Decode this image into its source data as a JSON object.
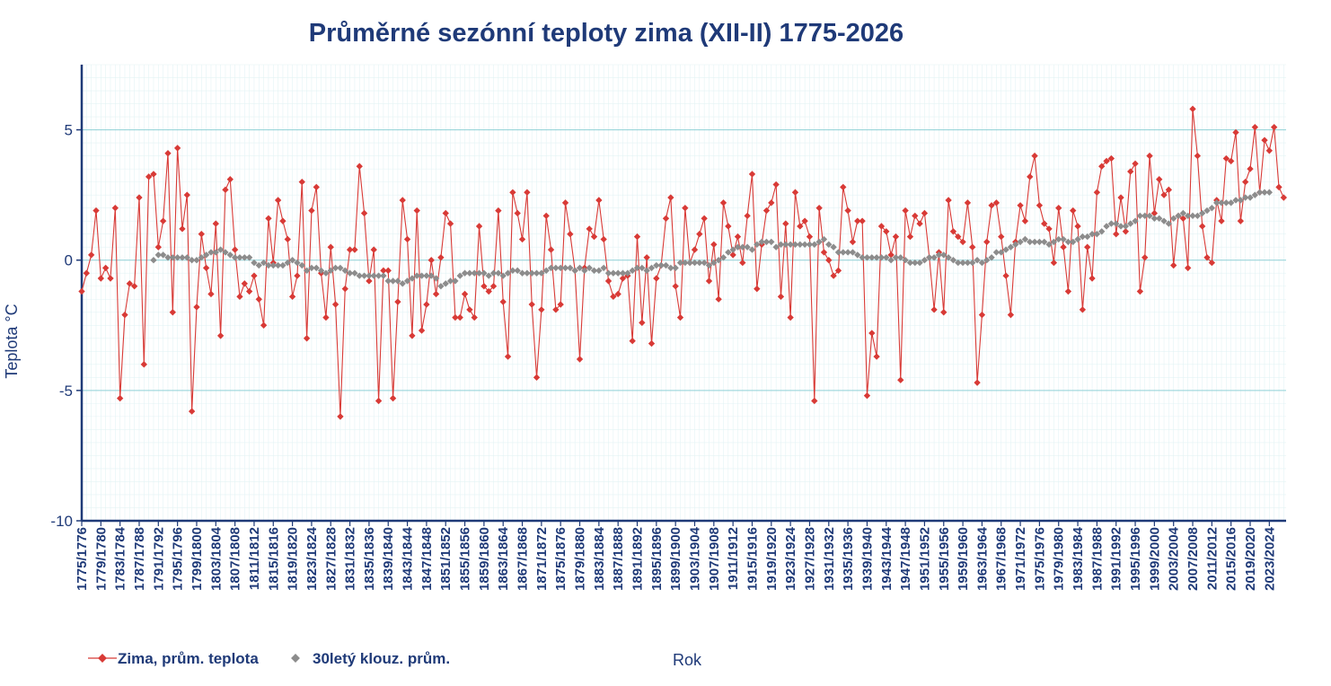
{
  "colors": {
    "title": "#1f3a78",
    "axis": "#1f3a78",
    "major_grid": "#8fd0d6",
    "minor_grid": "#e3f3f5",
    "series_main": "#d83a36",
    "series_avg": "#8c8c8c"
  },
  "chart_data": {
    "type": "line",
    "title": "Průměrné sezónní teploty zima (XII-II) 1775-2026",
    "xlabel": "Rok",
    "ylabel": "Teplota  °C",
    "ylim": [
      -10,
      7.5
    ],
    "yticks": [
      5,
      0,
      -5,
      -10
    ],
    "first_year": 1775,
    "x_tick_step": 4,
    "x_tick_labels": [
      "1775/1776",
      "1779/1780",
      "1783/1784",
      "1787/1788",
      "1791/1792",
      "1795/1796",
      "1799/1800",
      "1803/1804",
      "1807/1808",
      "1811/1812",
      "1815/1816",
      "1819/1820",
      "1823/1824",
      "1827/1828",
      "1831/1832",
      "1835/1836",
      "1839/1840",
      "1843/1844",
      "1847/1848",
      "1851/1852",
      "1855/1856",
      "1859/1860",
      "1863/1864",
      "1867/1868",
      "1871/1872",
      "1875/1876",
      "1879/1880",
      "1883/1884",
      "1887/1888",
      "1891/1892",
      "1895/1896",
      "1899/1900",
      "1903/1904",
      "1907/1908",
      "1911/1912",
      "1915/1916",
      "1919/1920",
      "1923/1924",
      "1927/1928",
      "1931/1932",
      "1935/1936",
      "1939/1940",
      "1943/1944",
      "1947/1948",
      "1951/1952",
      "1955/1956",
      "1959/1960",
      "1963/1964",
      "1967/1968",
      "1971/1972",
      "1975/1976",
      "1979/1980",
      "1983/1984",
      "1987/1988",
      "1991/1992",
      "1995/1996",
      "1999/2000",
      "2003/2004",
      "2007/2008",
      "2011/2012",
      "2015/2016",
      "2019/2020",
      "2023/2024"
    ],
    "legend_position": "bottom-left",
    "series": [
      {
        "name": "Zima, prům. teplota",
        "start_year": 1775,
        "values": [
          -1.2,
          -0.5,
          0.2,
          1.9,
          -0.7,
          -0.3,
          -0.7,
          2.0,
          -5.3,
          -2.1,
          -0.9,
          -1.0,
          2.4,
          -4.0,
          3.2,
          3.3,
          0.5,
          1.5,
          4.1,
          -2.0,
          4.3,
          1.2,
          2.5,
          -5.8,
          -1.8,
          1.0,
          -0.3,
          -1.3,
          1.4,
          -2.9,
          2.7,
          3.1,
          0.4,
          -1.4,
          -0.9,
          -1.2,
          -0.6,
          -1.5,
          -2.5,
          1.6,
          -0.1,
          2.3,
          1.5,
          0.8,
          -1.4,
          -0.6,
          3.0,
          -3.0,
          1.9,
          2.8,
          -0.5,
          -2.2,
          0.5,
          -1.7,
          -6.0,
          -1.1,
          0.4,
          0.4,
          3.6,
          1.8,
          -0.8,
          0.4,
          -5.4,
          -0.4,
          -0.4,
          -5.3,
          -1.6,
          2.3,
          0.8,
          -2.9,
          1.9,
          -2.7,
          -1.7,
          0.0,
          -1.3,
          0.1,
          1.8,
          1.4,
          -2.2,
          -2.2,
          -1.3,
          -1.9,
          -2.2,
          1.3,
          -1.0,
          -1.2,
          -1.0,
          1.9,
          -1.6,
          -3.7,
          2.6,
          1.8,
          0.8,
          2.6,
          -1.7,
          -4.5,
          -1.9,
          1.7,
          0.4,
          -1.9,
          -1.7,
          2.2,
          1.0,
          -0.4,
          -3.8,
          -0.3,
          1.2,
          0.9,
          2.3,
          0.8,
          -0.8,
          -1.4,
          -1.3,
          -0.7,
          -0.6,
          -3.1,
          0.9,
          -2.4,
          0.1,
          -3.2,
          -0.7,
          -0.2,
          1.6,
          2.4,
          -1.0,
          -2.2,
          2.0,
          -0.1,
          0.4,
          1.0,
          1.6,
          -0.8,
          0.6,
          -1.5,
          2.2,
          1.3,
          0.2,
          0.9,
          -0.1,
          1.7,
          3.3,
          -1.1,
          0.6,
          1.9,
          2.2,
          2.9,
          -1.4,
          1.4,
          -2.2,
          2.6,
          1.3,
          1.5,
          0.9,
          -5.4,
          2.0,
          0.3,
          0.0,
          -0.6,
          -0.4,
          2.8,
          1.9,
          0.7,
          1.5,
          1.5,
          -5.2,
          -2.8,
          -3.7,
          1.3,
          1.1,
          0.2,
          0.9,
          -4.6,
          1.9,
          0.9,
          1.7,
          1.4,
          1.8,
          0.1,
          -1.9,
          0.3,
          -2.0,
          2.3,
          1.1,
          0.9,
          0.7,
          2.2,
          0.5,
          -4.7,
          -2.1,
          0.7,
          2.1,
          2.2,
          0.9,
          -0.6,
          -2.1,
          0.7,
          2.1,
          1.5,
          3.2,
          4.0,
          2.1,
          1.4,
          1.2,
          -0.1,
          2.0,
          0.5,
          -1.2,
          1.9,
          1.3,
          -1.9,
          0.5,
          -0.7,
          2.6,
          3.6,
          3.8,
          3.9,
          1.0,
          2.4,
          1.1,
          3.4,
          3.7,
          -1.2,
          0.1,
          4.0,
          1.8,
          3.1,
          2.5,
          2.7,
          -0.2,
          1.7,
          1.6,
          -0.3,
          5.8,
          4.0,
          1.3,
          0.1,
          -0.1,
          2.3,
          1.5,
          3.9,
          3.8,
          4.9,
          1.5,
          3.0,
          3.5,
          5.1,
          2.6,
          4.6,
          4.2,
          5.1,
          2.8,
          2.4
        ]
      },
      {
        "name": "30letý klouz. prům.",
        "start_year": 1790,
        "values": [
          0.0,
          0.2,
          0.2,
          0.1,
          0.1,
          0.1,
          0.1,
          0.1,
          0.0,
          0.0,
          0.1,
          0.2,
          0.3,
          0.3,
          0.4,
          0.3,
          0.2,
          0.1,
          0.1,
          0.1,
          0.1,
          -0.1,
          -0.2,
          -0.1,
          -0.2,
          -0.2,
          -0.2,
          -0.2,
          -0.1,
          0.0,
          -0.1,
          -0.2,
          -0.4,
          -0.3,
          -0.3,
          -0.4,
          -0.5,
          -0.4,
          -0.3,
          -0.3,
          -0.4,
          -0.5,
          -0.5,
          -0.6,
          -0.6,
          -0.6,
          -0.6,
          -0.6,
          -0.6,
          -0.8,
          -0.8,
          -0.8,
          -0.9,
          -0.8,
          -0.7,
          -0.6,
          -0.6,
          -0.6,
          -0.6,
          -0.7,
          -1.0,
          -0.9,
          -0.8,
          -0.8,
          -0.6,
          -0.5,
          -0.5,
          -0.5,
          -0.5,
          -0.5,
          -0.6,
          -0.5,
          -0.5,
          -0.6,
          -0.5,
          -0.4,
          -0.4,
          -0.5,
          -0.5,
          -0.5,
          -0.5,
          -0.5,
          -0.4,
          -0.3,
          -0.3,
          -0.3,
          -0.3,
          -0.3,
          -0.4,
          -0.3,
          -0.4,
          -0.3,
          -0.4,
          -0.4,
          -0.3,
          -0.5,
          -0.5,
          -0.5,
          -0.5,
          -0.5,
          -0.4,
          -0.3,
          -0.3,
          -0.4,
          -0.3,
          -0.2,
          -0.2,
          -0.2,
          -0.3,
          -0.3,
          -0.1,
          -0.1,
          -0.1,
          -0.1,
          -0.1,
          -0.1,
          -0.2,
          -0.1,
          0.0,
          0.1,
          0.3,
          0.4,
          0.5,
          0.5,
          0.5,
          0.4,
          0.6,
          0.7,
          0.7,
          0.7,
          0.5,
          0.6,
          0.6,
          0.6,
          0.6,
          0.6,
          0.6,
          0.6,
          0.6,
          0.7,
          0.8,
          0.6,
          0.5,
          0.3,
          0.3,
          0.3,
          0.3,
          0.2,
          0.1,
          0.1,
          0.1,
          0.1,
          0.1,
          0.1,
          0.0,
          0.1,
          0.1,
          0.0,
          -0.1,
          -0.1,
          -0.1,
          0.0,
          0.1,
          0.1,
          0.2,
          0.2,
          0.1,
          0.0,
          -0.1,
          -0.1,
          -0.1,
          -0.1,
          0.0,
          -0.1,
          0.0,
          0.1,
          0.3,
          0.3,
          0.4,
          0.5,
          0.6,
          0.7,
          0.8,
          0.7,
          0.7,
          0.7,
          0.7,
          0.6,
          0.7,
          0.8,
          0.8,
          0.7,
          0.7,
          0.8,
          0.9,
          0.9,
          1.0,
          1.0,
          1.1,
          1.3,
          1.4,
          1.4,
          1.3,
          1.3,
          1.4,
          1.5,
          1.7,
          1.7,
          1.7,
          1.6,
          1.6,
          1.5,
          1.4,
          1.6,
          1.7,
          1.8,
          1.7,
          1.7,
          1.7,
          1.8,
          1.9,
          2.0,
          2.2,
          2.2,
          2.2,
          2.2,
          2.3,
          2.3,
          2.4,
          2.4,
          2.5,
          2.6,
          2.6,
          2.6
        ]
      }
    ]
  }
}
